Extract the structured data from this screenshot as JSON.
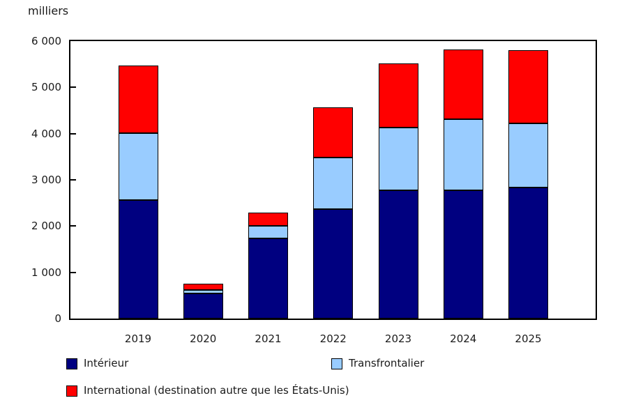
{
  "page": {
    "background": "#FFFFFF",
    "text_color": "#1A1A1A",
    "axis_color": "#000000"
  },
  "chart_data": {
    "type": "bar",
    "stacked": true,
    "title": "milliers",
    "ylabel": "milliers",
    "xlabel": "",
    "grid": false,
    "legend_position": "bottom",
    "ylim": [
      0,
      6000
    ],
    "categories": [
      "2019",
      "2020",
      "2021",
      "2022",
      "2023",
      "2024",
      "2025"
    ],
    "series": [
      {
        "name": "Intérieur",
        "color": "#000080",
        "values": [
          2560,
          550,
          1730,
          2370,
          2770,
          2770,
          2830
        ]
      },
      {
        "name": "Transfrontalier",
        "color": "#99CCFF",
        "values": [
          1450,
          70,
          280,
          1110,
          1360,
          1540,
          1390
        ]
      },
      {
        "name": "International (destination autre que les États-Unis)",
        "color": "#FF0000",
        "values": [
          1470,
          130,
          280,
          1090,
          1390,
          1510,
          1580
        ]
      }
    ],
    "totals": [
      5480,
      750,
      2290,
      4570,
      5520,
      5820,
      5800
    ],
    "yticks": [
      {
        "value": 0,
        "label": "0"
      },
      {
        "value": 1000,
        "label": "1 000"
      },
      {
        "value": 2000,
        "label": "2 000"
      },
      {
        "value": 3000,
        "label": "3 000"
      },
      {
        "value": 4000,
        "label": "4 000"
      },
      {
        "value": 5000,
        "label": "5 000"
      },
      {
        "value": 6000,
        "label": "6 000"
      }
    ]
  }
}
